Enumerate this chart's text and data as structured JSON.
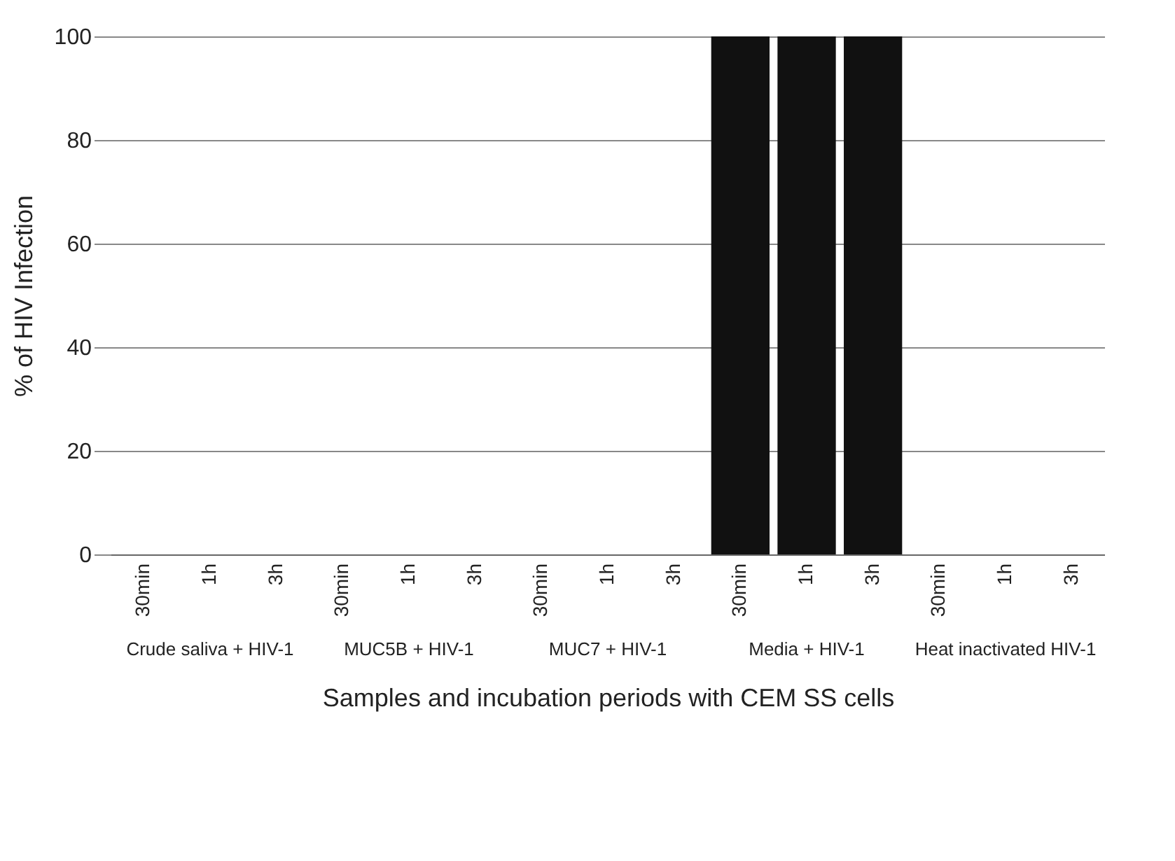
{
  "chart_data": {
    "type": "bar",
    "xlabel": "Samples and incubation periods with CEM SS cells",
    "ylabel": "% of HIV Infection",
    "categories": [
      "30min",
      "1h",
      "3h",
      "30min",
      "1h",
      "3h",
      "30min",
      "1h",
      "3h",
      "30min",
      "1h",
      "3h",
      "30min",
      "1h",
      "3h"
    ],
    "values": [
      0,
      0,
      0,
      0,
      0,
      0,
      0,
      0,
      0,
      100,
      100,
      100,
      0,
      0,
      0
    ],
    "color": "#111111",
    "ylim": [
      0,
      100
    ],
    "yticks": [
      0,
      20,
      40,
      60,
      80,
      100
    ],
    "grid": "y",
    "annotations": [
      "Crude saliva + HIV-1",
      "MUC5B + HIV-1",
      "MUC7 + HIV-1",
      "Media + HIV-1",
      "Heat inactivated HIV-1"
    ]
  }
}
